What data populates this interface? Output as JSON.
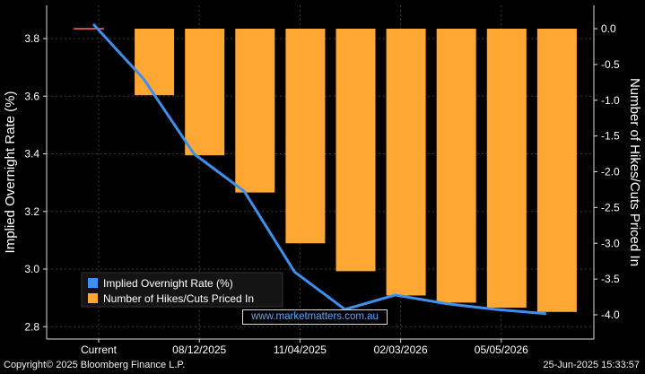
{
  "chart_data": {
    "type": "bar+line",
    "categories": [
      "Current",
      "",
      "08/12/2025",
      "",
      "11/04/2025",
      "",
      "02/03/2026",
      "",
      "05/05/2026",
      ""
    ],
    "series": [
      {
        "name": "Implied Overnight Rate (%)",
        "axis": "left",
        "type": "line",
        "color": "#3d8ff0",
        "values": [
          3.85,
          3.66,
          3.4,
          3.27,
          2.99,
          2.86,
          2.91,
          2.88,
          2.86,
          2.845
        ]
      },
      {
        "name": "Number of Hikes/Cuts Priced In",
        "axis": "right",
        "type": "bar",
        "color": "#ffa733",
        "values": [
          0.0,
          -0.93,
          -1.77,
          -2.29,
          -3.0,
          -3.39,
          -3.73,
          -3.83,
          -3.9,
          -3.96
        ]
      }
    ],
    "ylabel_left": "Implied Overnight Rate (%)",
    "ylabel_right": "Number of Hikes/Cuts Priced In",
    "ylim_left": [
      2.75,
      3.95
    ],
    "ylim_right": [
      -4.3,
      0.4
    ],
    "yticks_left": [
      "3.8",
      "3.6",
      "3.4",
      "3.2",
      "3.0",
      "2.8"
    ],
    "yticks_right": [
      "0.0",
      "-0.5",
      "-1.0",
      "-1.5",
      "-2.0",
      "-2.5",
      "-3.0",
      "-3.5",
      "-4.0"
    ],
    "xticks": [
      "Current",
      "08/12/2025",
      "11/04/2025",
      "02/03/2026",
      "05/05/2026"
    ],
    "legend": [
      "Implied Overnight Rate (%)",
      "Number of Hikes/Cuts Priced In"
    ],
    "legend_position": "bottom-left",
    "grid": true
  },
  "footer": {
    "left": "Copyright© 2025 Bloomberg Finance L.P.",
    "right": "25-Jun-2025 15:33:57"
  },
  "watermark": "www.marketmatters.com.au"
}
